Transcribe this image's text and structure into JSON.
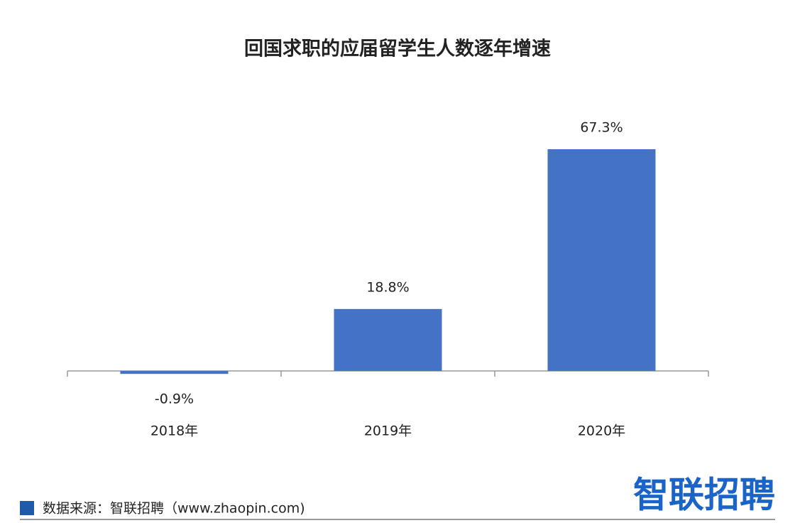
{
  "chart_data": {
    "type": "bar",
    "title": "回国求职的应届留学生人数逐年增速",
    "categories": [
      "2018年",
      "2019年",
      "2020年"
    ],
    "values": [
      -0.9,
      18.8,
      67.3
    ],
    "value_labels": [
      "-0.9%",
      "18.8%",
      "67.3%"
    ],
    "color": "#4472c4"
  },
  "source": "数据来源：智联招聘（www.zhaopin.com)",
  "logo": "智联招聘"
}
